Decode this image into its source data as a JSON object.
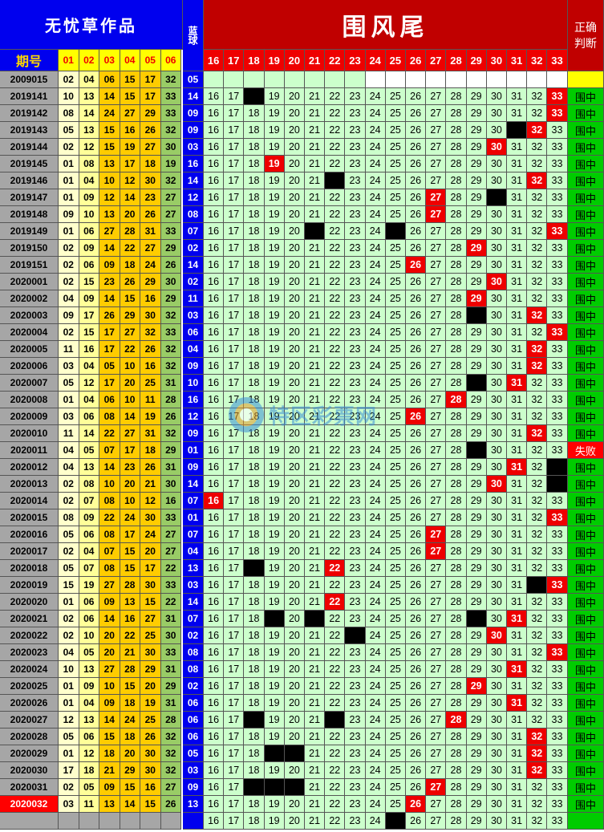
{
  "header": {
    "brand": "无忧草作品",
    "title": "围风尾",
    "blue_ball": "蓝球",
    "judge": "正确判断",
    "period_label": "期号",
    "red_ball_headers": [
      "01",
      "02",
      "03",
      "04",
      "05",
      "06"
    ],
    "tail_headers": [
      "16",
      "17",
      "18",
      "19",
      "20",
      "21",
      "22",
      "23",
      "24",
      "25",
      "26",
      "27",
      "28",
      "29",
      "30",
      "31",
      "32",
      "33"
    ]
  },
  "colors": {
    "brand_bg": "#0000ee",
    "title_bg": "#c00000",
    "green_cell": "#ccffcc",
    "hit_red": "#ee0000",
    "judge_green": "#00cc00",
    "yellow": "#ffff00"
  },
  "rows": [
    {
      "period": "2009015",
      "reds": [
        "02",
        "04",
        "06",
        "15",
        "17",
        "32"
      ],
      "blue": "05",
      "marks": [],
      "result": ""
    },
    {
      "period": "2019141",
      "reds": [
        "10",
        "13",
        "14",
        "15",
        "17",
        "33"
      ],
      "blue": "14",
      "marks": [
        "18b",
        "33r"
      ],
      "result": "围中"
    },
    {
      "period": "2019142",
      "reds": [
        "08",
        "14",
        "24",
        "27",
        "29",
        "33"
      ],
      "blue": "09",
      "marks": [
        "33r"
      ],
      "result": "围中"
    },
    {
      "period": "2019143",
      "reds": [
        "05",
        "13",
        "15",
        "16",
        "26",
        "32"
      ],
      "blue": "09",
      "marks": [
        "31b",
        "32r"
      ],
      "result": "围中"
    },
    {
      "period": "2019144",
      "reds": [
        "02",
        "12",
        "15",
        "19",
        "27",
        "30"
      ],
      "blue": "03",
      "marks": [
        "30r"
      ],
      "result": "围中"
    },
    {
      "period": "2019145",
      "reds": [
        "01",
        "08",
        "13",
        "17",
        "18",
        "19"
      ],
      "blue": "16",
      "marks": [
        "19r"
      ],
      "result": "围中"
    },
    {
      "period": "2019146",
      "reds": [
        "01",
        "04",
        "10",
        "12",
        "30",
        "32"
      ],
      "blue": "14",
      "marks": [
        "22b",
        "32r"
      ],
      "result": "围中"
    },
    {
      "period": "2019147",
      "reds": [
        "01",
        "09",
        "12",
        "14",
        "23",
        "27"
      ],
      "blue": "12",
      "marks": [
        "27r",
        "30b"
      ],
      "result": "围中"
    },
    {
      "period": "2019148",
      "reds": [
        "09",
        "10",
        "13",
        "20",
        "26",
        "27"
      ],
      "blue": "08",
      "marks": [
        "27r"
      ],
      "result": "围中"
    },
    {
      "period": "2019149",
      "reds": [
        "01",
        "06",
        "27",
        "28",
        "31",
        "33"
      ],
      "blue": "07",
      "marks": [
        "21b",
        "25b",
        "33r"
      ],
      "result": "围中"
    },
    {
      "period": "2019150",
      "reds": [
        "02",
        "09",
        "14",
        "22",
        "27",
        "29"
      ],
      "blue": "02",
      "marks": [
        "29r"
      ],
      "result": "围中"
    },
    {
      "period": "2019151",
      "reds": [
        "02",
        "06",
        "09",
        "18",
        "24",
        "26"
      ],
      "blue": "14",
      "marks": [
        "26r"
      ],
      "result": "围中"
    },
    {
      "period": "2020001",
      "reds": [
        "02",
        "15",
        "23",
        "26",
        "29",
        "30"
      ],
      "blue": "02",
      "marks": [
        "30r"
      ],
      "result": "围中"
    },
    {
      "period": "2020002",
      "reds": [
        "04",
        "09",
        "14",
        "15",
        "16",
        "29"
      ],
      "blue": "11",
      "marks": [
        "29r"
      ],
      "result": "围中"
    },
    {
      "period": "2020003",
      "reds": [
        "09",
        "17",
        "26",
        "29",
        "30",
        "32"
      ],
      "blue": "03",
      "marks": [
        "29b",
        "32r"
      ],
      "result": "围中"
    },
    {
      "period": "2020004",
      "reds": [
        "02",
        "15",
        "17",
        "27",
        "32",
        "33"
      ],
      "blue": "06",
      "marks": [
        "33r"
      ],
      "result": "围中"
    },
    {
      "period": "2020005",
      "reds": [
        "11",
        "16",
        "17",
        "22",
        "26",
        "32"
      ],
      "blue": "04",
      "marks": [
        "32r"
      ],
      "result": "围中"
    },
    {
      "period": "2020006",
      "reds": [
        "03",
        "04",
        "05",
        "10",
        "16",
        "32"
      ],
      "blue": "09",
      "marks": [
        "32r"
      ],
      "result": "围中"
    },
    {
      "period": "2020007",
      "reds": [
        "05",
        "12",
        "17",
        "20",
        "25",
        "31"
      ],
      "blue": "10",
      "marks": [
        "29b",
        "31r"
      ],
      "result": "围中"
    },
    {
      "period": "2020008",
      "reds": [
        "01",
        "04",
        "06",
        "10",
        "11",
        "28"
      ],
      "blue": "16",
      "marks": [
        "28r"
      ],
      "result": "围中"
    },
    {
      "period": "2020009",
      "reds": [
        "03",
        "06",
        "08",
        "14",
        "19",
        "26"
      ],
      "blue": "12",
      "marks": [
        "26r"
      ],
      "result": "围中"
    },
    {
      "period": "2020010",
      "reds": [
        "11",
        "14",
        "22",
        "27",
        "31",
        "32"
      ],
      "blue": "09",
      "marks": [
        "32r"
      ],
      "result": "围中"
    },
    {
      "period": "2020011",
      "reds": [
        "04",
        "05",
        "07",
        "17",
        "18",
        "29"
      ],
      "blue": "01",
      "marks": [
        "29b"
      ],
      "result": "失败"
    },
    {
      "period": "2020012",
      "reds": [
        "04",
        "13",
        "14",
        "23",
        "26",
        "31"
      ],
      "blue": "09",
      "marks": [
        "31r",
        "33b"
      ],
      "result": "围中"
    },
    {
      "period": "2020013",
      "reds": [
        "02",
        "08",
        "10",
        "20",
        "21",
        "30"
      ],
      "blue": "14",
      "marks": [
        "30r",
        "33b"
      ],
      "result": "围中"
    },
    {
      "period": "2020014",
      "reds": [
        "02",
        "07",
        "08",
        "10",
        "12",
        "16"
      ],
      "blue": "07",
      "marks": [
        "16r"
      ],
      "result": "围中"
    },
    {
      "period": "2020015",
      "reds": [
        "08",
        "09",
        "22",
        "24",
        "30",
        "33"
      ],
      "blue": "01",
      "marks": [
        "33r"
      ],
      "result": "围中"
    },
    {
      "period": "2020016",
      "reds": [
        "05",
        "06",
        "08",
        "17",
        "24",
        "27"
      ],
      "blue": "07",
      "marks": [
        "27r"
      ],
      "result": "围中"
    },
    {
      "period": "2020017",
      "reds": [
        "02",
        "04",
        "07",
        "15",
        "20",
        "27"
      ],
      "blue": "04",
      "marks": [
        "27r"
      ],
      "result": "围中"
    },
    {
      "period": "2020018",
      "reds": [
        "05",
        "07",
        "08",
        "15",
        "17",
        "22"
      ],
      "blue": "13",
      "marks": [
        "18b",
        "22r"
      ],
      "result": "围中"
    },
    {
      "period": "2020019",
      "reds": [
        "15",
        "19",
        "27",
        "28",
        "30",
        "33"
      ],
      "blue": "03",
      "marks": [
        "32b",
        "33r"
      ],
      "result": "围中"
    },
    {
      "period": "2020020",
      "reds": [
        "01",
        "06",
        "09",
        "13",
        "15",
        "22"
      ],
      "blue": "14",
      "marks": [
        "22r"
      ],
      "result": "围中"
    },
    {
      "period": "2020021",
      "reds": [
        "02",
        "06",
        "14",
        "16",
        "27",
        "31"
      ],
      "blue": "07",
      "marks": [
        "19b",
        "21b",
        "29b",
        "31r"
      ],
      "result": "围中"
    },
    {
      "period": "2020022",
      "reds": [
        "02",
        "10",
        "20",
        "22",
        "25",
        "30"
      ],
      "blue": "02",
      "marks": [
        "23b",
        "30r"
      ],
      "result": "围中"
    },
    {
      "period": "2020023",
      "reds": [
        "04",
        "05",
        "20",
        "21",
        "30",
        "33"
      ],
      "blue": "08",
      "marks": [
        "33r"
      ],
      "result": "围中"
    },
    {
      "period": "2020024",
      "reds": [
        "10",
        "13",
        "27",
        "28",
        "29",
        "31"
      ],
      "blue": "08",
      "marks": [
        "31r"
      ],
      "result": "围中"
    },
    {
      "period": "2020025",
      "reds": [
        "01",
        "09",
        "10",
        "15",
        "20",
        "29"
      ],
      "blue": "02",
      "marks": [
        "29r"
      ],
      "result": "围中"
    },
    {
      "period": "2020026",
      "reds": [
        "01",
        "04",
        "09",
        "18",
        "19",
        "31"
      ],
      "blue": "06",
      "marks": [
        "31r"
      ],
      "result": "围中"
    },
    {
      "period": "2020027",
      "reds": [
        "12",
        "13",
        "14",
        "24",
        "25",
        "28"
      ],
      "blue": "06",
      "marks": [
        "18b",
        "22b",
        "28r"
      ],
      "result": "围中"
    },
    {
      "period": "2020028",
      "reds": [
        "05",
        "06",
        "15",
        "18",
        "26",
        "32"
      ],
      "blue": "06",
      "marks": [
        "32r"
      ],
      "result": "围中"
    },
    {
      "period": "2020029",
      "reds": [
        "01",
        "12",
        "18",
        "20",
        "30",
        "32"
      ],
      "blue": "05",
      "marks": [
        "19b",
        "20b",
        "32r"
      ],
      "result": "围中"
    },
    {
      "period": "2020030",
      "reds": [
        "17",
        "18",
        "21",
        "29",
        "30",
        "32"
      ],
      "blue": "03",
      "marks": [
        "32r"
      ],
      "result": "围中"
    },
    {
      "period": "2020031",
      "reds": [
        "02",
        "05",
        "09",
        "15",
        "16",
        "27"
      ],
      "blue": "09",
      "marks": [
        "18b",
        "19b",
        "20b",
        "27r"
      ],
      "result": "围中"
    },
    {
      "period": "2020032",
      "reds": [
        "03",
        "11",
        "13",
        "14",
        "15",
        "26"
      ],
      "blue": "13",
      "marks": [
        "26r"
      ],
      "result": "围中"
    },
    {
      "period": "",
      "reds": [
        "",
        "",
        "",
        "",
        "",
        ""
      ],
      "blue": "",
      "marks": [
        "25b"
      ],
      "result": ""
    }
  ]
}
